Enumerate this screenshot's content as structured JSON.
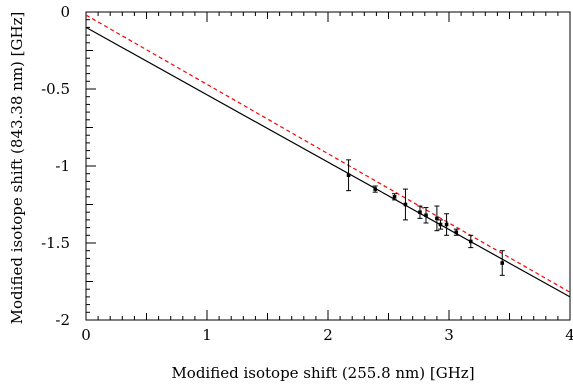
{
  "chart_data": {
    "type": "scatter",
    "xlabel": "Modified isotope shift (255.8 nm) [GHz]",
    "ylabel": "Modified isotope shift (843.38 nm) [GHz]",
    "xlim": [
      0,
      4
    ],
    "ylim": [
      -2,
      0
    ],
    "x_ticks": [
      "0",
      "1",
      "2",
      "3",
      "4"
    ],
    "y_ticks": [
      "0",
      "-0.5",
      "-1",
      "-1.5",
      "-2"
    ],
    "grid": false,
    "legend": "none",
    "series": [
      {
        "kind": "points",
        "color": "#000000",
        "points": [
          {
            "x": 2.17,
            "y": -1.06,
            "err": 0.1
          },
          {
            "x": 2.39,
            "y": -1.15,
            "err": 0.02
          },
          {
            "x": 2.55,
            "y": -1.2,
            "err": 0.02
          },
          {
            "x": 2.64,
            "y": -1.25,
            "err": 0.1
          },
          {
            "x": 2.76,
            "y": -1.3,
            "err": 0.04
          },
          {
            "x": 2.81,
            "y": -1.32,
            "err": 0.05
          },
          {
            "x": 2.9,
            "y": -1.34,
            "err": 0.08
          },
          {
            "x": 2.93,
            "y": -1.38,
            "err": 0.03
          },
          {
            "x": 2.98,
            "y": -1.38,
            "err": 0.07
          },
          {
            "x": 3.06,
            "y": -1.43,
            "err": 0.02
          },
          {
            "x": 3.18,
            "y": -1.49,
            "err": 0.04
          },
          {
            "x": 3.44,
            "y": -1.63,
            "err": 0.08
          }
        ]
      },
      {
        "kind": "line",
        "style": "solid",
        "color": "#000000",
        "x": [
          0,
          4
        ],
        "y": [
          -0.1,
          -1.85
        ]
      },
      {
        "kind": "line",
        "style": "dashed",
        "color": "#ff0000",
        "x": [
          0,
          4
        ],
        "y": [
          -0.02,
          -1.82
        ]
      }
    ]
  }
}
